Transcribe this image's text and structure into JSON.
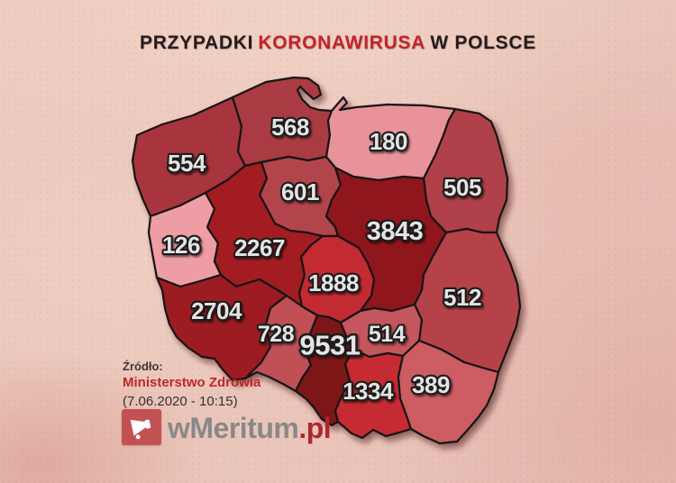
{
  "canvas": {
    "background_color": "#ebc7bb"
  },
  "title": {
    "part1": "PRZYPADKI",
    "highlight": "KORONAWIRUSA",
    "part2": "W POLSCE",
    "text_color": "#241b1d",
    "highlight_color": "#c2232b"
  },
  "map": {
    "stroke_color": "#161214",
    "label_color": "#e4e4e4",
    "label_outline": "#1a1a1a",
    "regions": [
      {
        "id": "zachodniopomorskie",
        "cases": "554",
        "fill": "#a8353c"
      },
      {
        "id": "pomorskie",
        "cases": "568",
        "fill": "#aa3a42"
      },
      {
        "id": "warminsko-mazurskie",
        "cases": "180",
        "fill": "#e8939a"
      },
      {
        "id": "podlaskie",
        "cases": "505",
        "fill": "#b04048"
      },
      {
        "id": "kujawsko-pomorskie",
        "cases": "601",
        "fill": "#b2444b"
      },
      {
        "id": "lubuskie",
        "cases": "126",
        "fill": "#ee9da4"
      },
      {
        "id": "wielkopolskie",
        "cases": "2267",
        "fill": "#a31d24"
      },
      {
        "id": "mazowieckie",
        "cases": "3843",
        "fill": "#8e161c"
      },
      {
        "id": "lodzkie",
        "cases": "1888",
        "fill": "#c32930"
      },
      {
        "id": "lubelskie",
        "cases": "512",
        "fill": "#b64349"
      },
      {
        "id": "dolnoslaskie",
        "cases": "2704",
        "fill": "#9c1a21"
      },
      {
        "id": "opolskie",
        "cases": "728",
        "fill": "#c05056"
      },
      {
        "id": "slaskie",
        "cases": "9531",
        "fill": "#7d1318"
      },
      {
        "id": "swietokrzyskie",
        "cases": "514",
        "fill": "#c4565d"
      },
      {
        "id": "malopolskie",
        "cases": "1334",
        "fill": "#c62b32"
      },
      {
        "id": "podkarpackie",
        "cases": "389",
        "fill": "#cd5c63"
      }
    ]
  },
  "source": {
    "label": "Źródło:",
    "name": "Ministerstwo Zdrowia",
    "name_color": "#bf262c",
    "timestamp": "(7.06.2020 - 10:15)"
  },
  "logo": {
    "icon": "megaphone-icon",
    "badge_color": "#bf484c",
    "text": "wMeritum",
    "text_color": "#8b8789",
    "suffix": ".pl",
    "suffix_color": "#b0262c"
  },
  "chart_data": {
    "type": "choropleth-map",
    "title": "PRZYPADKI KORONAWIRUSA W POLSCE",
    "categories": [
      "zachodniopomorskie",
      "pomorskie",
      "warminsko-mazurskie",
      "podlaskie",
      "kujawsko-pomorskie",
      "lubuskie",
      "wielkopolskie",
      "mazowieckie",
      "lodzkie",
      "lubelskie",
      "dolnoslaskie",
      "opolskie",
      "slaskie",
      "swietokrzyskie",
      "malopolskie",
      "podkarpackie"
    ],
    "values": [
      554,
      568,
      180,
      505,
      601,
      126,
      2267,
      3843,
      1888,
      512,
      2704,
      728,
      9531,
      514,
      1334,
      389
    ],
    "source": "Ministerstwo Zdrowia (7.06.2020 - 10:15)"
  }
}
